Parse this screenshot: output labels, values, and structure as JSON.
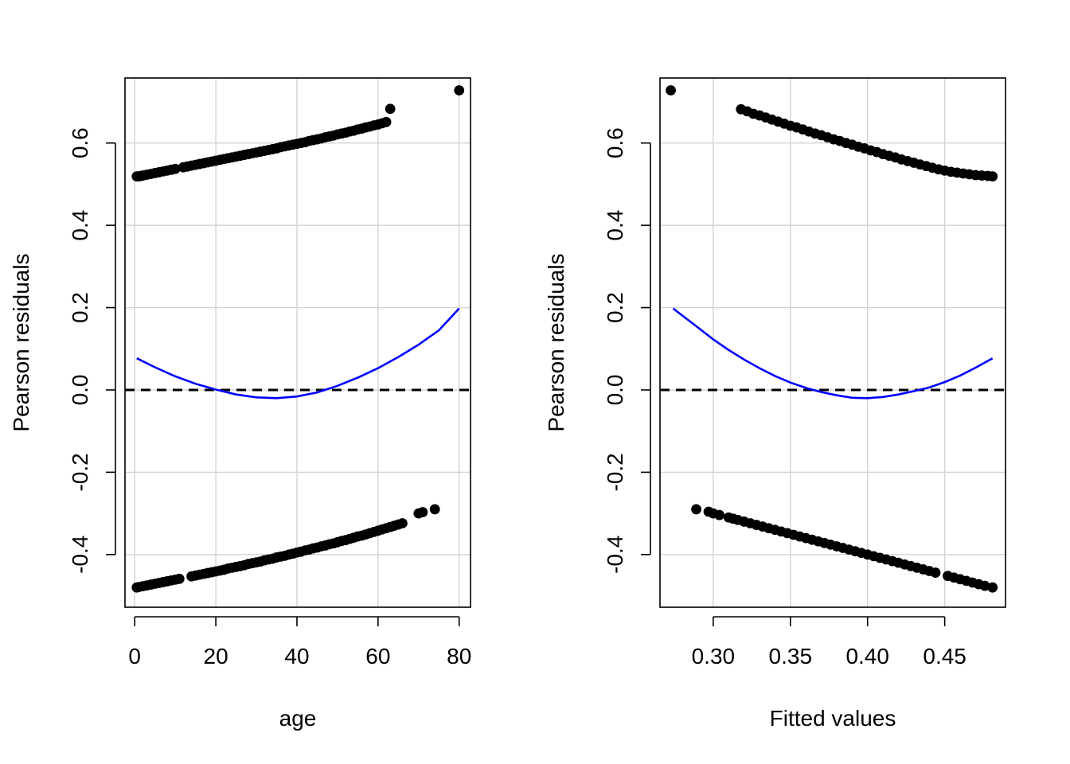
{
  "chart_data": [
    {
      "type": "scatter",
      "xlabel": "age",
      "ylabel": "Pearson residuals",
      "xlim": [
        -2.4,
        82.8
      ],
      "ylim": [
        -0.528,
        0.758
      ],
      "x_ticks": [
        0,
        20,
        40,
        60,
        80
      ],
      "x_tick_labels": [
        "0",
        "20",
        "40",
        "60",
        "80"
      ],
      "y_ticks": [
        -0.4,
        -0.2,
        0.0,
        0.2,
        0.4,
        0.6
      ],
      "y_tick_labels": [
        "-0.4",
        "-0.2",
        "0.0",
        "0.2",
        "0.4",
        "0.6"
      ],
      "grid": true,
      "reference_line": {
        "y": 0,
        "style": "dashed",
        "color": "#000000"
      },
      "smooth_curve": {
        "color": "#0000ff",
        "x": [
          0.5,
          5,
          10,
          15,
          20,
          25,
          30,
          35,
          40,
          45,
          50,
          55,
          60,
          65,
          70,
          75,
          80
        ],
        "y": [
          0.077,
          0.055,
          0.033,
          0.015,
          0.001,
          -0.011,
          -0.018,
          -0.02,
          -0.016,
          -0.006,
          0.01,
          0.03,
          0.053,
          0.08,
          0.11,
          0.145,
          0.198
        ]
      },
      "series": [
        {
          "color": "#000000",
          "x": [
            0.5,
            1,
            1.5,
            2,
            3,
            4,
            5,
            6,
            7,
            8,
            9,
            10,
            12,
            13,
            14,
            15,
            16,
            17,
            18,
            19,
            20,
            21,
            22,
            23,
            24,
            25,
            26,
            27,
            28,
            29,
            30,
            31,
            32,
            33,
            34,
            35,
            36,
            37,
            38,
            39,
            40,
            41,
            42,
            43,
            44,
            45,
            46,
            47,
            48,
            49,
            50,
            51,
            52,
            53,
            54,
            55,
            56,
            57,
            58,
            59,
            60,
            61,
            62,
            63,
            80
          ],
          "y": [
            0.519,
            0.519,
            0.52,
            0.521,
            0.523,
            0.525,
            0.527,
            0.529,
            0.531,
            0.533,
            0.535,
            0.537,
            0.541,
            0.543,
            0.545,
            0.547,
            0.549,
            0.551,
            0.553,
            0.555,
            0.557,
            0.559,
            0.561,
            0.563,
            0.565,
            0.567,
            0.569,
            0.571,
            0.573,
            0.575,
            0.577,
            0.579,
            0.581,
            0.583,
            0.585,
            0.587,
            0.59,
            0.592,
            0.594,
            0.596,
            0.598,
            0.6,
            0.602,
            0.605,
            0.607,
            0.609,
            0.611,
            0.614,
            0.616,
            0.618,
            0.621,
            0.623,
            0.625,
            0.628,
            0.63,
            0.633,
            0.635,
            0.638,
            0.64,
            0.643,
            0.645,
            0.648,
            0.651,
            0.683,
            0.728
          ]
        },
        {
          "color": "#000000",
          "x": [
            0.5,
            1,
            2,
            3,
            4,
            5,
            6,
            7,
            8,
            9,
            10,
            11,
            14,
            15,
            16,
            17,
            18,
            19,
            20,
            21,
            22,
            23,
            24,
            25,
            26,
            27,
            28,
            29,
            30,
            31,
            32,
            33,
            34,
            35,
            36,
            37,
            38,
            39,
            40,
            41,
            42,
            43,
            44,
            45,
            46,
            47,
            48,
            49,
            50,
            51,
            52,
            53,
            54,
            55,
            56,
            57,
            58,
            59,
            60,
            61,
            62,
            63,
            64,
            65,
            66,
            70,
            71,
            74
          ],
          "y": [
            -0.48,
            -0.479,
            -0.477,
            -0.475,
            -0.473,
            -0.471,
            -0.469,
            -0.467,
            -0.465,
            -0.463,
            -0.461,
            -0.459,
            -0.453,
            -0.451,
            -0.449,
            -0.447,
            -0.445,
            -0.443,
            -0.441,
            -0.439,
            -0.437,
            -0.434,
            -0.432,
            -0.43,
            -0.428,
            -0.426,
            -0.423,
            -0.421,
            -0.419,
            -0.417,
            -0.414,
            -0.412,
            -0.41,
            -0.407,
            -0.405,
            -0.403,
            -0.4,
            -0.398,
            -0.395,
            -0.393,
            -0.39,
            -0.388,
            -0.385,
            -0.383,
            -0.38,
            -0.378,
            -0.375,
            -0.373,
            -0.37,
            -0.367,
            -0.365,
            -0.362,
            -0.359,
            -0.356,
            -0.354,
            -0.351,
            -0.348,
            -0.345,
            -0.342,
            -0.339,
            -0.336,
            -0.333,
            -0.33,
            -0.327,
            -0.324,
            -0.3,
            -0.297,
            -0.29
          ]
        }
      ]
    },
    {
      "type": "scatter",
      "xlabel": "Fitted values",
      "ylabel": "Pearson residuals",
      "xlim": [
        0.2655,
        0.4894
      ],
      "ylim": [
        -0.528,
        0.758
      ],
      "x_ticks": [
        0.3,
        0.35,
        0.4,
        0.45
      ],
      "x_tick_labels": [
        "0.30",
        "0.35",
        "0.40",
        "0.45"
      ],
      "y_ticks": [
        -0.4,
        -0.2,
        0.0,
        0.2,
        0.4,
        0.6
      ],
      "y_tick_labels": [
        "-0.4",
        "-0.2",
        "0.0",
        "0.2",
        "0.4",
        "0.6"
      ],
      "grid": true,
      "reference_line": {
        "y": 0,
        "style": "dashed",
        "color": "#000000"
      },
      "smooth_curve": {
        "color": "#0000ff",
        "x": [
          0.274,
          0.29,
          0.3,
          0.31,
          0.32,
          0.33,
          0.34,
          0.35,
          0.36,
          0.37,
          0.38,
          0.39,
          0.4,
          0.41,
          0.42,
          0.43,
          0.44,
          0.45,
          0.46,
          0.47,
          0.481
        ],
        "y": [
          0.198,
          0.152,
          0.123,
          0.097,
          0.074,
          0.053,
          0.034,
          0.018,
          0.005,
          -0.005,
          -0.013,
          -0.019,
          -0.02,
          -0.017,
          -0.011,
          -0.003,
          0.006,
          0.019,
          0.035,
          0.054,
          0.077
        ]
      },
      "series": [
        {
          "color": "#000000",
          "x": [
            0.2725,
            0.318,
            0.322,
            0.326,
            0.33,
            0.334,
            0.338,
            0.342,
            0.346,
            0.35,
            0.354,
            0.358,
            0.362,
            0.366,
            0.37,
            0.374,
            0.378,
            0.382,
            0.386,
            0.39,
            0.394,
            0.398,
            0.402,
            0.406,
            0.41,
            0.414,
            0.418,
            0.422,
            0.426,
            0.43,
            0.434,
            0.438,
            0.442,
            0.446,
            0.45,
            0.454,
            0.458,
            0.462,
            0.466,
            0.47,
            0.474,
            0.478,
            0.481
          ],
          "y": [
            0.728,
            0.682,
            0.677,
            0.671,
            0.667,
            0.662,
            0.657,
            0.652,
            0.647,
            0.642,
            0.638,
            0.633,
            0.628,
            0.623,
            0.619,
            0.614,
            0.609,
            0.605,
            0.6,
            0.596,
            0.591,
            0.587,
            0.582,
            0.578,
            0.573,
            0.569,
            0.565,
            0.56,
            0.556,
            0.552,
            0.548,
            0.544,
            0.54,
            0.536,
            0.533,
            0.53,
            0.528,
            0.526,
            0.524,
            0.522,
            0.521,
            0.52,
            0.519
          ]
        },
        {
          "color": "#000000",
          "x": [
            0.289,
            0.297,
            0.3,
            0.304,
            0.31,
            0.313,
            0.316,
            0.32,
            0.324,
            0.328,
            0.332,
            0.336,
            0.34,
            0.344,
            0.348,
            0.352,
            0.356,
            0.36,
            0.364,
            0.368,
            0.372,
            0.376,
            0.38,
            0.384,
            0.388,
            0.392,
            0.396,
            0.4,
            0.404,
            0.408,
            0.412,
            0.416,
            0.42,
            0.424,
            0.428,
            0.432,
            0.436,
            0.44,
            0.444,
            0.452,
            0.456,
            0.46,
            0.464,
            0.468,
            0.472,
            0.476,
            0.481
          ],
          "y": [
            -0.29,
            -0.296,
            -0.3,
            -0.304,
            -0.31,
            -0.313,
            -0.316,
            -0.32,
            -0.324,
            -0.328,
            -0.332,
            -0.336,
            -0.34,
            -0.344,
            -0.348,
            -0.352,
            -0.356,
            -0.36,
            -0.364,
            -0.368,
            -0.372,
            -0.376,
            -0.38,
            -0.384,
            -0.388,
            -0.392,
            -0.396,
            -0.4,
            -0.404,
            -0.408,
            -0.412,
            -0.416,
            -0.42,
            -0.424,
            -0.428,
            -0.432,
            -0.436,
            -0.44,
            -0.444,
            -0.452,
            -0.456,
            -0.46,
            -0.464,
            -0.468,
            -0.472,
            -0.476,
            -0.48
          ]
        }
      ]
    }
  ]
}
